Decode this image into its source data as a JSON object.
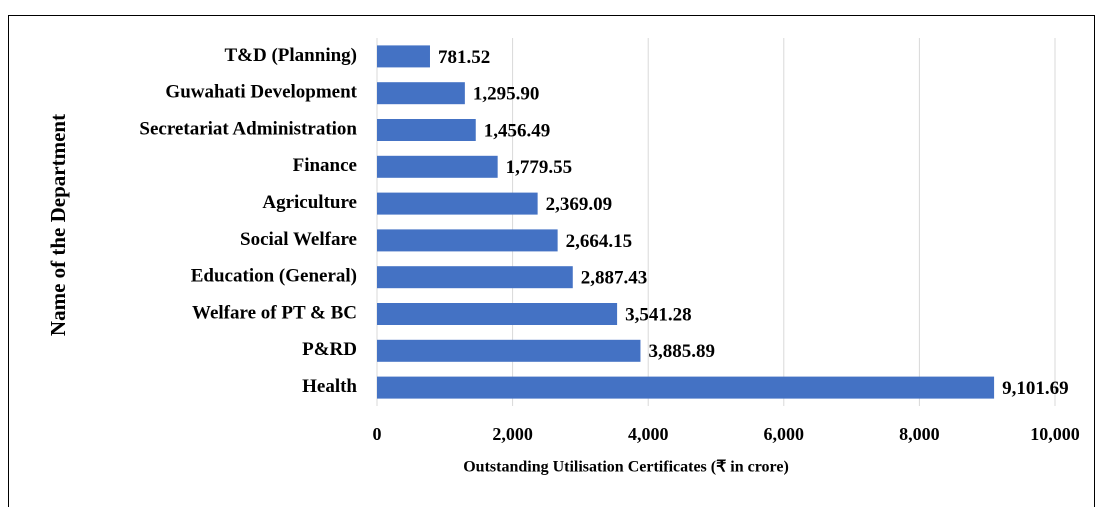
{
  "chart_data": {
    "type": "bar",
    "orientation": "horizontal",
    "x_label": "Outstanding Utilisation Certificates (₹ in crore)",
    "y_label": "Name of the Department",
    "categories": [
      "T&D (Planning)",
      "Guwahati Development",
      "Secretariat Administration",
      "Finance",
      "Agriculture",
      "Social Welfare",
      "Education (General)",
      "Welfare of PT & BC",
      "P&RD",
      "Health"
    ],
    "values": [
      781.52,
      1295.9,
      1456.49,
      1779.55,
      2369.09,
      2664.15,
      2887.43,
      3541.28,
      3885.89,
      9101.69
    ],
    "value_labels": [
      "781.52",
      "1,295.90",
      "1,456.49",
      "1,779.55",
      "2,369.09",
      "2,664.15",
      "2,887.43",
      "3,541.28",
      "3,885.89",
      "9,101.69"
    ],
    "color": "#4472c4",
    "xlim": [
      0,
      10000
    ],
    "xticks": [
      0,
      {
        "value": 2000,
        "label": "2,000"
      },
      {
        "value": 4000,
        "label": "4,000"
      },
      {
        "value": 6000,
        "label": "6,000"
      },
      {
        "value": 8000,
        "label": "8,000"
      },
      {
        "value": 10000,
        "label": "10,000"
      }
    ],
    "grid": true
  }
}
